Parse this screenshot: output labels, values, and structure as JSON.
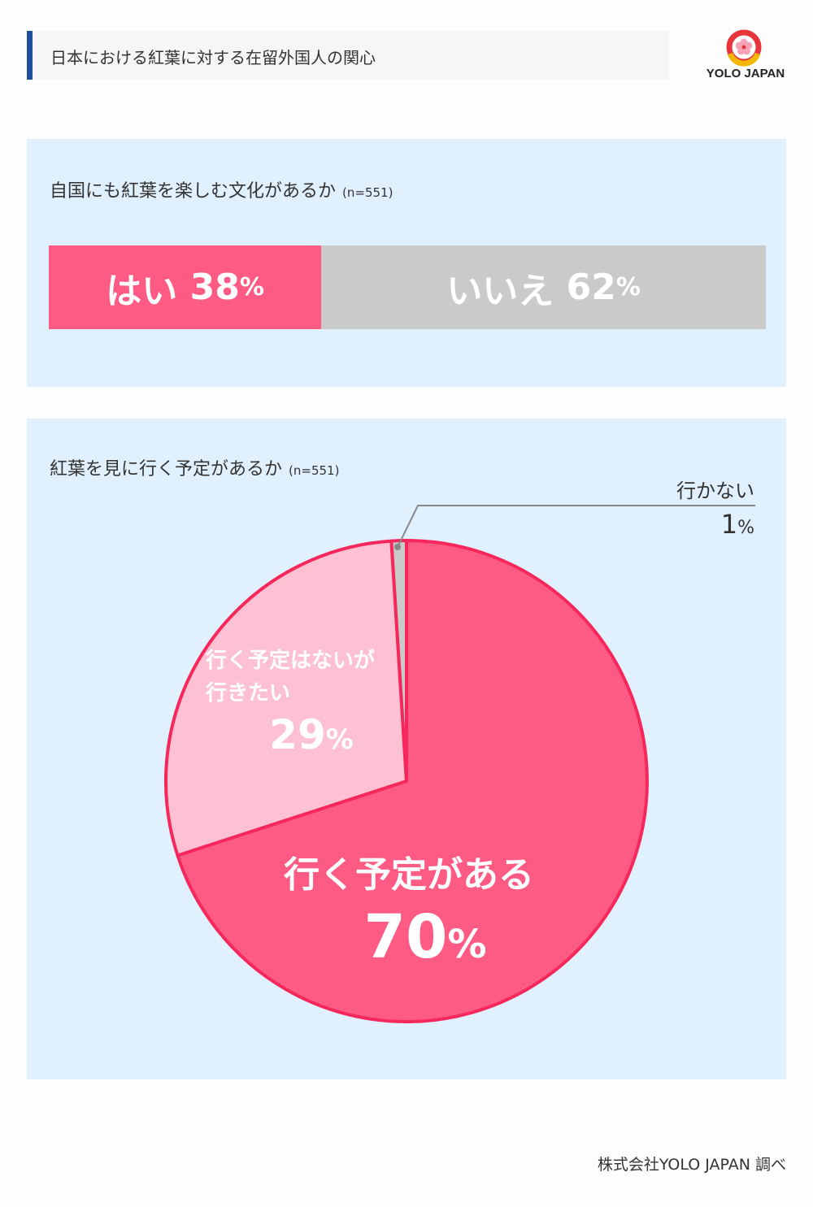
{
  "header": {
    "title": "日本における紅葉に対する在留外国人の関心",
    "logo_text": "YOLO JAPAN"
  },
  "q1": {
    "question": "自国にも紅葉を楽しむ文化があるか",
    "n": "(n=551)"
  },
  "q2": {
    "question": "紅葉を見に行く予定があるか",
    "n": "(n=551)"
  },
  "colors": {
    "pink": "#fe5b84",
    "pink_border": "#f5275b",
    "light_pink": "#fdc1d3",
    "gray": "#cacaca",
    "panel_bg": "#e0f0fd",
    "title_accent": "#1f4e9c"
  },
  "chart_data": [
    {
      "type": "bar",
      "title": "自国にも紅葉を楽しむ文化があるか",
      "n": 551,
      "stacked": true,
      "orientation": "horizontal",
      "categories": [
        "はい",
        "いいえ"
      ],
      "values": [
        38,
        62
      ],
      "labels": [
        {
          "name": "はい",
          "pct": "38",
          "unit": "%"
        },
        {
          "name": "いいえ",
          "pct": "62",
          "unit": "%"
        }
      ]
    },
    {
      "type": "pie",
      "title": "紅葉を見に行く予定があるか",
      "n": 551,
      "categories": [
        "行く予定がある",
        "行く予定はないが行きたい",
        "行かない"
      ],
      "values": [
        70,
        29,
        1
      ],
      "labels": {
        "go": {
          "name": "行く予定がある",
          "pct": "70",
          "unit": "%"
        },
        "want": {
          "name_line1": "行く予定はないが",
          "name_line2": "行きたい",
          "pct": "29",
          "unit": "%"
        },
        "not_go": {
          "name": "行かない",
          "pct": "1",
          "unit": "%"
        }
      }
    }
  ],
  "footer": {
    "source": "株式会社YOLO JAPAN 調べ"
  }
}
